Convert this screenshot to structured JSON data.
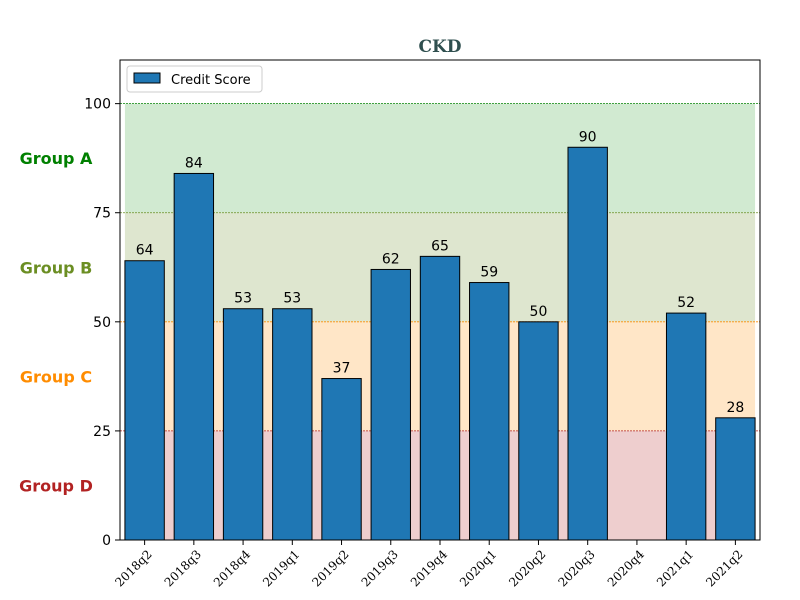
{
  "chart_data": {
    "type": "bar",
    "title": "CKD",
    "categories": [
      "2018q2",
      "2018q3",
      "2018q4",
      "2019q1",
      "2019q2",
      "2019q3",
      "2019q4",
      "2020q1",
      "2020q2",
      "2020q3",
      "2020q4",
      "2021q1",
      "2021q2"
    ],
    "series": [
      {
        "name": "Credit Score",
        "values": [
          64,
          84,
          53,
          53,
          37,
          62,
          65,
          59,
          50,
          90,
          null,
          52,
          28
        ],
        "color": "#1f77b4"
      }
    ],
    "data_labels": [
      "64",
      "84",
      "53",
      "53",
      "37",
      "62",
      "65",
      "59",
      "50",
      "90",
      "",
      "52",
      "28"
    ],
    "ylim": [
      0,
      110
    ],
    "yticks": [
      0,
      25,
      50,
      75,
      100
    ],
    "xlabel": "",
    "ylabel": "",
    "legend_position": "top-left",
    "grid": false,
    "bands": [
      {
        "name": "Group A",
        "from": 75,
        "to": 100,
        "fill": "#2ca02c",
        "text_color": "#008000",
        "line_color": "#008000"
      },
      {
        "name": "Group B",
        "from": 50,
        "to": 75,
        "fill": "#6b8e23",
        "text_color": "#6b8e23",
        "line_color": "#6b8e23"
      },
      {
        "name": "Group C",
        "from": 25,
        "to": 50,
        "fill": "#ff8c00",
        "text_color": "#ff8c00",
        "line_color": "#ff8c00"
      },
      {
        "name": "Group D",
        "from": 0,
        "to": 25,
        "fill": "#b22222",
        "text_color": "#b22222",
        "line_color": "#b22222"
      }
    ]
  }
}
